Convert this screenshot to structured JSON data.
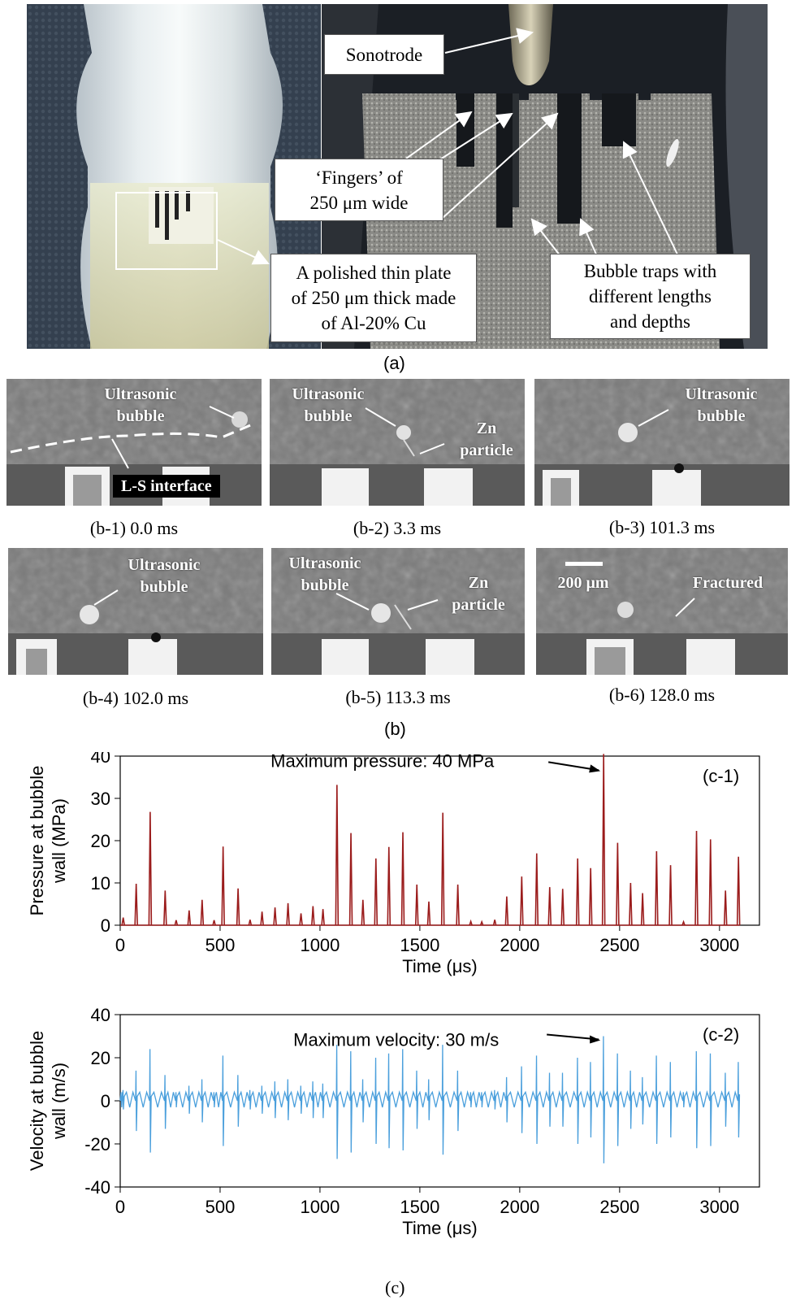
{
  "panel_a": {
    "label": "(a)",
    "callouts": {
      "sonotrode": "Sonotrode",
      "fingers_line1": "‘Fingers’ of",
      "fingers_line2": "250 μm wide",
      "plate_line1": "A polished thin plate",
      "plate_line2": "of 250 μm thick made",
      "plate_line3": "of Al-20% Cu",
      "traps_line1": "Bubble traps with",
      "traps_line2": "different lengths",
      "traps_line3": "and depths"
    }
  },
  "panel_b": {
    "label": "(b)",
    "tiles": [
      {
        "caption": "(b-1) 0.0 ms",
        "labels": [
          "Ultrasonic",
          "bubble"
        ],
        "interface": "L-S interface"
      },
      {
        "caption": "(b-2) 3.3 ms",
        "labels": [
          "Ultrasonic",
          "bubble"
        ],
        "particle": [
          "Zn",
          "particle"
        ]
      },
      {
        "caption": "(b-3) 101.3 ms",
        "labels": [
          "Ultrasonic",
          "bubble"
        ]
      },
      {
        "caption": "(b-4) 102.0 ms",
        "labels": [
          "Ultrasonic",
          "bubble"
        ]
      },
      {
        "caption": "(b-5) 113.3 ms",
        "labels": [
          "Ultrasonic",
          "bubble"
        ],
        "particle": [
          "Zn",
          "particle"
        ]
      },
      {
        "caption": "(b-6) 128.0 ms",
        "scale": "200 μm",
        "fractured": "Fractured"
      }
    ]
  },
  "panel_c": {
    "label": "(c)"
  },
  "chart_data": [
    {
      "type": "line",
      "panel": "(c-1)",
      "xlabel": "Time (μs)",
      "ylabel_line1": "Pressure at bubble",
      "ylabel_line2": "wall (MPa)",
      "xlim": [
        0,
        3200
      ],
      "ylim": [
        0,
        40
      ],
      "xticks": [
        "0",
        "500",
        "1000",
        "1500",
        "2000",
        "2500",
        "3000"
      ],
      "yticks": [
        "0",
        "10",
        "20",
        "30",
        "40"
      ],
      "annotation": "Maximum pressure: 40 MPa",
      "color": "#9b1c1c",
      "peaks": [
        {
          "t": 15,
          "v": 1.8
        },
        {
          "t": 80,
          "v": 9.8
        },
        {
          "t": 150,
          "v": 26.8
        },
        {
          "t": 225,
          "v": 8.2
        },
        {
          "t": 280,
          "v": 1.2
        },
        {
          "t": 345,
          "v": 3.5
        },
        {
          "t": 410,
          "v": 6.0
        },
        {
          "t": 470,
          "v": 1.2
        },
        {
          "t": 515,
          "v": 18.6
        },
        {
          "t": 590,
          "v": 8.7
        },
        {
          "t": 650,
          "v": 1.3
        },
        {
          "t": 710,
          "v": 3.2
        },
        {
          "t": 775,
          "v": 4.2
        },
        {
          "t": 840,
          "v": 5.2
        },
        {
          "t": 905,
          "v": 2.8
        },
        {
          "t": 965,
          "v": 4.5
        },
        {
          "t": 1015,
          "v": 3.8
        },
        {
          "t": 1085,
          "v": 33.2
        },
        {
          "t": 1155,
          "v": 21.8
        },
        {
          "t": 1215,
          "v": 6.0
        },
        {
          "t": 1280,
          "v": 15.8
        },
        {
          "t": 1345,
          "v": 18.5
        },
        {
          "t": 1415,
          "v": 22.0
        },
        {
          "t": 1485,
          "v": 9.6
        },
        {
          "t": 1545,
          "v": 5.6
        },
        {
          "t": 1615,
          "v": 26.6
        },
        {
          "t": 1690,
          "v": 9.6
        },
        {
          "t": 1755,
          "v": 0.9
        },
        {
          "t": 1810,
          "v": 0.8
        },
        {
          "t": 1875,
          "v": 1.3
        },
        {
          "t": 1935,
          "v": 6.8
        },
        {
          "t": 2010,
          "v": 11.5
        },
        {
          "t": 2085,
          "v": 17.0
        },
        {
          "t": 2150,
          "v": 9.0
        },
        {
          "t": 2215,
          "v": 8.6
        },
        {
          "t": 2290,
          "v": 15.8
        },
        {
          "t": 2355,
          "v": 13.5
        },
        {
          "t": 2420,
          "v": 40.5
        },
        {
          "t": 2490,
          "v": 19.5
        },
        {
          "t": 2555,
          "v": 10.0
        },
        {
          "t": 2615,
          "v": 7.6
        },
        {
          "t": 2685,
          "v": 17.5
        },
        {
          "t": 2755,
          "v": 14.2
        },
        {
          "t": 2820,
          "v": 0.8
        },
        {
          "t": 2885,
          "v": 22.3
        },
        {
          "t": 2955,
          "v": 20.3
        },
        {
          "t": 3030,
          "v": 8.2
        },
        {
          "t": 3095,
          "v": 16.2
        }
      ]
    },
    {
      "type": "line",
      "panel": "(c-2)",
      "xlabel": "Time (μs)",
      "ylabel_line1": "Velocity at bubble",
      "ylabel_line2": "wall (m/s)",
      "xlim": [
        0,
        3200
      ],
      "ylim": [
        -40,
        40
      ],
      "xticks": [
        "0",
        "500",
        "1000",
        "1500",
        "2000",
        "2500",
        "3000"
      ],
      "yticks": [
        "-40",
        "-20",
        "0",
        "20",
        "40"
      ],
      "annotation": "Maximum velocity: 30 m/s",
      "color": "#4a9fdc",
      "spikes": [
        {
          "t": 15,
          "up": 5,
          "down": -4
        },
        {
          "t": 80,
          "up": 14,
          "down": -14
        },
        {
          "t": 150,
          "up": 24,
          "down": -24
        },
        {
          "t": 225,
          "up": 12,
          "down": -13
        },
        {
          "t": 280,
          "up": 4,
          "down": -3
        },
        {
          "t": 345,
          "up": 7,
          "down": -6
        },
        {
          "t": 410,
          "up": 10,
          "down": -10
        },
        {
          "t": 470,
          "up": 4,
          "down": -3
        },
        {
          "t": 515,
          "up": 21,
          "down": -21
        },
        {
          "t": 590,
          "up": 12,
          "down": -12
        },
        {
          "t": 650,
          "up": 5,
          "down": -4
        },
        {
          "t": 710,
          "up": 7,
          "down": -6
        },
        {
          "t": 775,
          "up": 9,
          "down": -8
        },
        {
          "t": 840,
          "up": 10,
          "down": -9
        },
        {
          "t": 905,
          "up": 7,
          "down": -6
        },
        {
          "t": 965,
          "up": 9,
          "down": -8
        },
        {
          "t": 1015,
          "up": 8,
          "down": -8
        },
        {
          "t": 1085,
          "up": 26,
          "down": -27
        },
        {
          "t": 1155,
          "up": 23,
          "down": -24
        },
        {
          "t": 1215,
          "up": 10,
          "down": -10
        },
        {
          "t": 1280,
          "up": 20,
          "down": -20
        },
        {
          "t": 1345,
          "up": 22,
          "down": -22
        },
        {
          "t": 1415,
          "up": 24,
          "down": -23
        },
        {
          "t": 1485,
          "up": 14,
          "down": -13
        },
        {
          "t": 1545,
          "up": 10,
          "down": -9
        },
        {
          "t": 1615,
          "up": 26,
          "down": -25
        },
        {
          "t": 1690,
          "up": 14,
          "down": -14
        },
        {
          "t": 1755,
          "up": 4,
          "down": -3
        },
        {
          "t": 1810,
          "up": 4,
          "down": -3
        },
        {
          "t": 1875,
          "up": 5,
          "down": -4
        },
        {
          "t": 1935,
          "up": 11,
          "down": -10
        },
        {
          "t": 2010,
          "up": 16,
          "down": -15
        },
        {
          "t": 2085,
          "up": 21,
          "down": -20
        },
        {
          "t": 2150,
          "up": 13,
          "down": -12
        },
        {
          "t": 2215,
          "up": 13,
          "down": -12
        },
        {
          "t": 2290,
          "up": 20,
          "down": -20
        },
        {
          "t": 2355,
          "up": 18,
          "down": -17
        },
        {
          "t": 2420,
          "up": 30,
          "down": -29
        },
        {
          "t": 2490,
          "up": 22,
          "down": -21
        },
        {
          "t": 2555,
          "up": 14,
          "down": -13
        },
        {
          "t": 2615,
          "up": 11,
          "down": -11
        },
        {
          "t": 2685,
          "up": 21,
          "down": -20
        },
        {
          "t": 2755,
          "up": 18,
          "down": -17
        },
        {
          "t": 2820,
          "up": 4,
          "down": -3
        },
        {
          "t": 2885,
          "up": 23,
          "down": -22
        },
        {
          "t": 2955,
          "up": 22,
          "down": -21
        },
        {
          "t": 3030,
          "up": 13,
          "down": -12
        },
        {
          "t": 3095,
          "up": 18,
          "down": -17
        }
      ]
    }
  ]
}
